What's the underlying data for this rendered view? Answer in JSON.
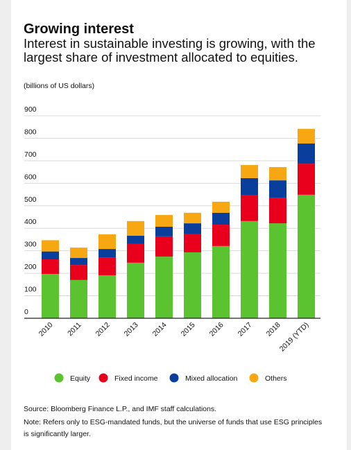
{
  "chart_data": {
    "type": "stacked_bar",
    "title": "Growing interest",
    "subtitle": "Interest in sustainable investing is growing, with the largest share of investment allocated to equities.",
    "y_label": "(billions of US dollars)",
    "categories": [
      "2010",
      "2011",
      "2012",
      "2013",
      "2014",
      "2015",
      "2016",
      "2017",
      "2018",
      "2019 (YTD)"
    ],
    "series": [
      {
        "name": "Equity",
        "color": "#5ac32f",
        "values": [
          197,
          170,
          191,
          247,
          274,
          293,
          321,
          432,
          422,
          549
        ]
      },
      {
        "name": "Fixed income",
        "color": "#e8001c",
        "values": [
          65,
          67,
          80,
          83,
          90,
          83,
          95,
          114,
          114,
          138
        ]
      },
      {
        "name": "Mixed allocation",
        "color": "#0a3e9c",
        "values": [
          35,
          31,
          37,
          37,
          43,
          46,
          53,
          77,
          77,
          90
        ]
      },
      {
        "name": "Others",
        "color": "#f7a712",
        "values": [
          50,
          46,
          65,
          65,
          52,
          47,
          49,
          58,
          59,
          65
        ]
      }
    ],
    "ylim": [
      0,
      900
    ],
    "yticks": [
      0,
      100,
      200,
      300,
      400,
      500,
      600,
      700,
      800,
      900
    ],
    "grid": true,
    "source": "Source: Bloomberg Finance L.P., and IMF staff calculations.",
    "note": "Note: Refers only to ESG-mandated funds, but the universe of funds that use ESG principles is significantly larger."
  }
}
